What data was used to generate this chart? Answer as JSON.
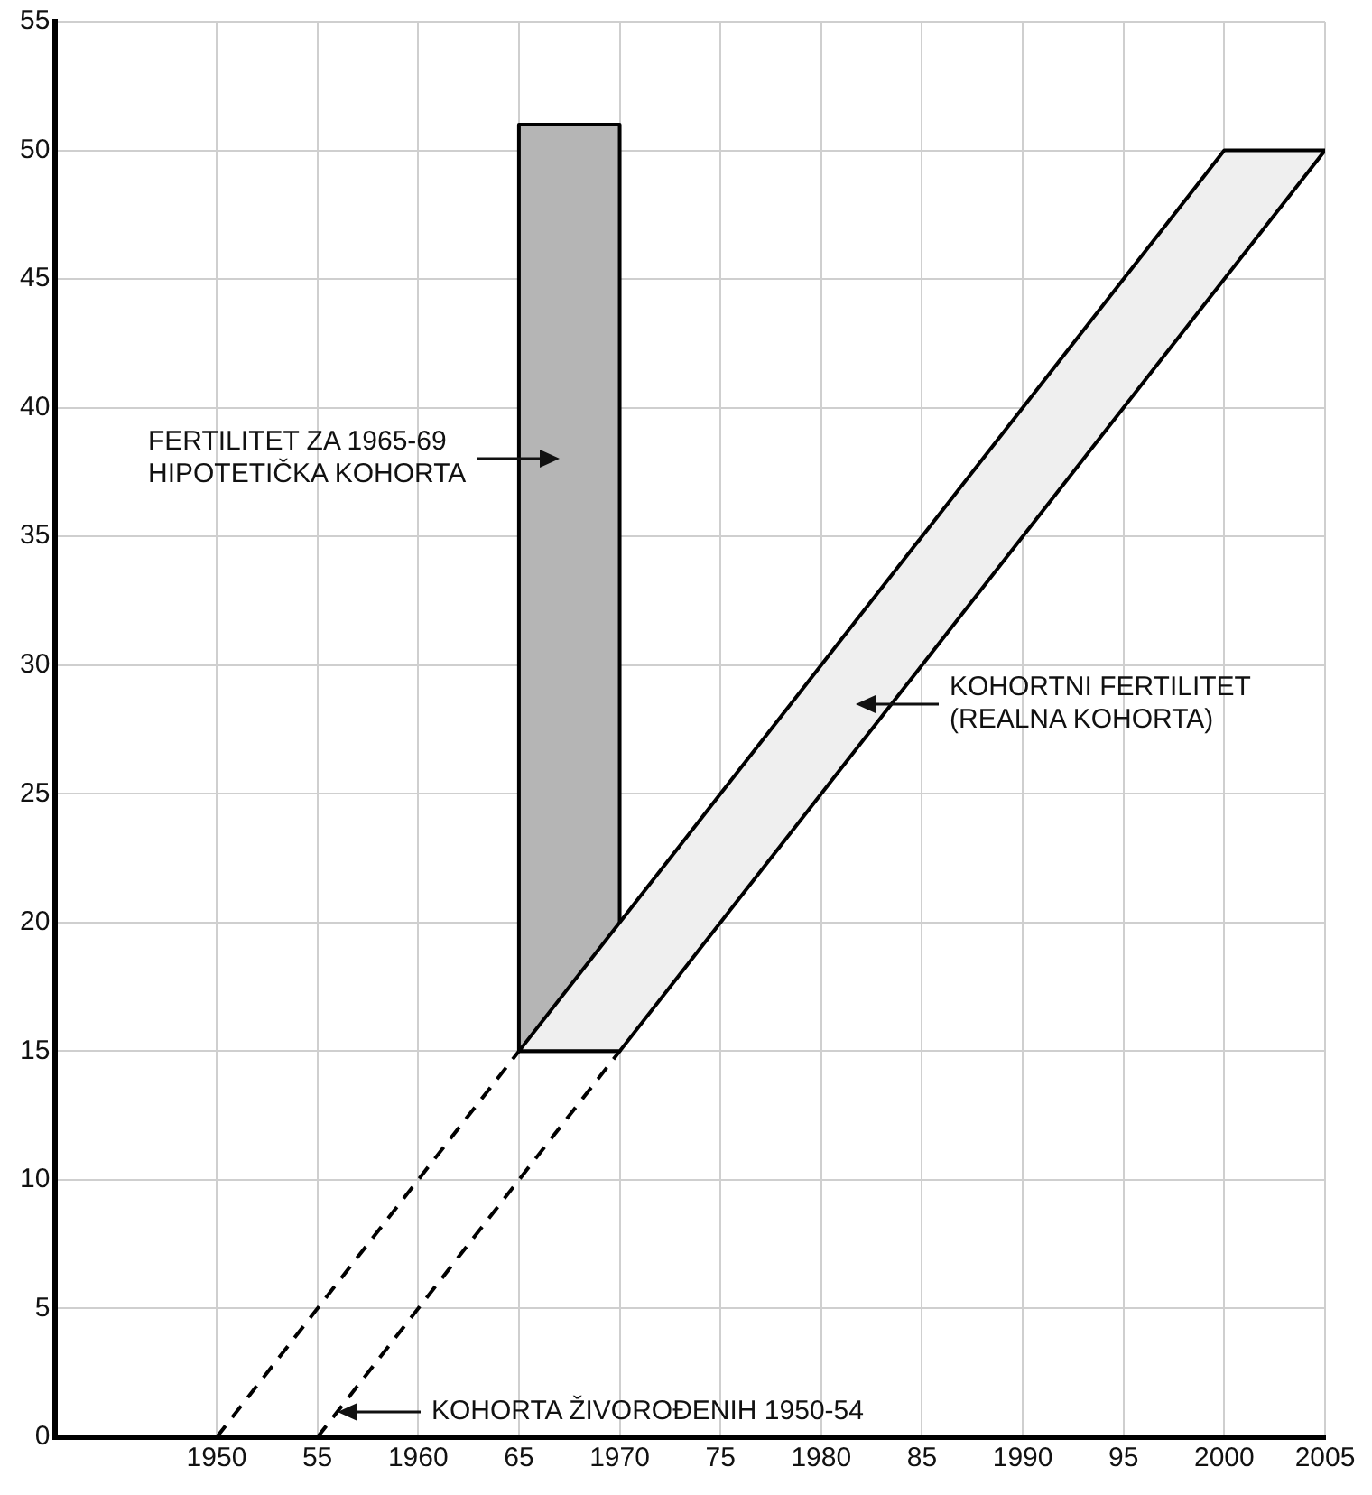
{
  "chart_data": {
    "type": "area",
    "series": [
      {
        "color": "#b5b5b5",
        "x": [
          1965,
          1965,
          1970,
          1970,
          1965
        ],
        "values": [
          15,
          51,
          51,
          15,
          15
        ]
      },
      {
        "color": "#efefef",
        "x": [
          1965,
          2000,
          2005,
          1970,
          1965
        ],
        "values": [
          15,
          50,
          50,
          15,
          15
        ]
      },
      {
        "type": "line",
        "color": "#000000",
        "line_style": "dashed",
        "x": [
          1950,
          1965
        ],
        "values": [
          0,
          15
        ]
      },
      {
        "type": "line",
        "color": "#000000",
        "line_style": "dashed",
        "x": [
          1955,
          1970
        ],
        "values": [
          0,
          15
        ]
      }
    ],
    "xlim": [
      1942,
      2005
    ],
    "xticks": [
      1950,
      {
        "value": 1955,
        "label": "55"
      },
      1960,
      {
        "value": 1965,
        "label": "65"
      },
      1970,
      {
        "value": 1975,
        "label": "75"
      },
      1980,
      {
        "value": 1985,
        "label": "85"
      },
      1990,
      {
        "value": 1995,
        "label": "95"
      },
      2000,
      2005
    ],
    "ylim": [
      0,
      55
    ],
    "yticks": [
      0,
      5,
      10,
      15,
      20,
      25,
      30,
      35,
      40,
      45,
      50,
      55
    ],
    "grid": true,
    "legend": false,
    "marker": "none",
    "annotations": [
      "FERTILITET ZA 1965-69\nHIPOTETIČKA KOHORTA",
      "KOHORTNI FERTILITET\n(REALNA KOHORTA)",
      {
        "text": "KOHORTA ŽIVOROĐENIH 1950-54",
        "x": 1956,
        "y": 1
      }
    ]
  }
}
